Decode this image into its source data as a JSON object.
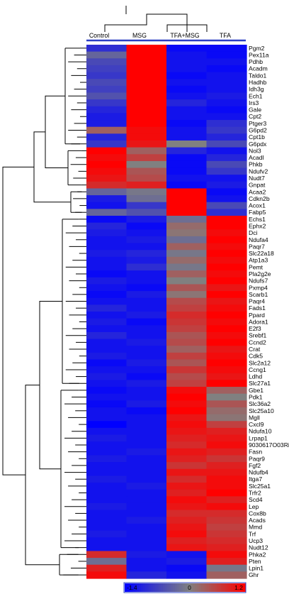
{
  "chart_data": {
    "type": "heatmap",
    "columns": [
      "Control",
      "MSG",
      "TFA+MSG",
      "TFA"
    ],
    "colorbar": {
      "min_label": "-1.4",
      "mid_label": "0",
      "max_label": "1.2",
      "min": -1.4,
      "max": 1.2,
      "colors": {
        "low": "#0000ff",
        "mid": "#808080",
        "high": "#ff0000"
      }
    },
    "rows": [
      {
        "gene": "Pgm2",
        "values": [
          -0.9,
          1.2,
          -1.3,
          -1.3
        ]
      },
      {
        "gene": "Pex11a",
        "values": [
          -0.3,
          1.2,
          -1.2,
          -1.3
        ]
      },
      {
        "gene": "Pdhb",
        "values": [
          -0.6,
          1.2,
          -1.2,
          -1.2
        ]
      },
      {
        "gene": "Acadm",
        "values": [
          -0.7,
          1.2,
          -1.2,
          -1.3
        ]
      },
      {
        "gene": "Taldo1",
        "values": [
          -0.8,
          1.2,
          -1.3,
          -1.2
        ]
      },
      {
        "gene": "Hadhb",
        "values": [
          -0.6,
          1.2,
          -1.2,
          -1.2
        ]
      },
      {
        "gene": "Idh3g",
        "values": [
          -0.7,
          1.2,
          -1.3,
          -1.2
        ]
      },
      {
        "gene": "Ech1",
        "values": [
          -0.5,
          1.2,
          -1.2,
          -1.1
        ]
      },
      {
        "gene": "Irs3",
        "values": [
          -0.8,
          1.2,
          -1.0,
          -1.2
        ]
      },
      {
        "gene": "Gale",
        "values": [
          -1.0,
          1.2,
          -1.2,
          -1.3
        ]
      },
      {
        "gene": "Cpt2",
        "values": [
          -1.1,
          1.2,
          -1.2,
          -1.2
        ]
      },
      {
        "gene": "Ptger3",
        "values": [
          -1.1,
          1.2,
          -1.3,
          -0.9
        ]
      },
      {
        "gene": "G6pd2",
        "values": [
          0.3,
          1.1,
          -1.2,
          -0.8
        ]
      },
      {
        "gene": "Cpt1b",
        "values": [
          -1.0,
          1.1,
          -1.2,
          -1.0
        ]
      },
      {
        "gene": "G6pdx",
        "values": [
          -0.8,
          1.0,
          0.0,
          -0.6
        ]
      },
      {
        "gene": "Nol3",
        "values": [
          1.2,
          0.3,
          -1.0,
          -1.2
        ]
      },
      {
        "gene": "Acadl",
        "values": [
          1.1,
          0.6,
          -1.3,
          -1.0
        ]
      },
      {
        "gene": "Phkb",
        "values": [
          1.2,
          0.0,
          -1.3,
          -0.6
        ]
      },
      {
        "gene": "Ndufv2",
        "values": [
          1.1,
          0.4,
          -1.3,
          -0.8
        ]
      },
      {
        "gene": "Nudt7",
        "values": [
          1.0,
          0.5,
          -1.2,
          -1.2
        ]
      },
      {
        "gene": "Gnpat",
        "values": [
          0.8,
          0.9,
          -1.3,
          -1.1
        ]
      },
      {
        "gene": "Acaa2",
        "values": [
          -0.3,
          -0.1,
          1.2,
          -1.3
        ]
      },
      {
        "gene": "Cdkn2b",
        "values": [
          -1.1,
          -0.2,
          1.2,
          -1.2
        ]
      },
      {
        "gene": "Acox1",
        "values": [
          -1.2,
          -0.8,
          1.2,
          -0.6
        ]
      },
      {
        "gene": "Fabp5",
        "values": [
          -0.3,
          -0.5,
          1.2,
          -0.9
        ]
      },
      {
        "gene": "Echs1",
        "values": [
          -1.3,
          -1.1,
          -0.2,
          1.2
        ]
      },
      {
        "gene": "Ephx2",
        "values": [
          -1.0,
          -1.3,
          0.2,
          1.2
        ]
      },
      {
        "gene": "Dci",
        "values": [
          -1.1,
          -1.2,
          0.1,
          1.1
        ]
      },
      {
        "gene": "Ndufa4",
        "values": [
          -1.2,
          -1.1,
          -0.2,
          1.2
        ]
      },
      {
        "gene": "Paqr7",
        "values": [
          -1.2,
          -1.2,
          0.3,
          1.1
        ]
      },
      {
        "gene": "Slc22a18",
        "values": [
          -1.1,
          -1.0,
          -0.1,
          1.2
        ]
      },
      {
        "gene": "Atp1a3",
        "values": [
          -1.2,
          -1.1,
          0.2,
          1.1
        ]
      },
      {
        "gene": "Pemt",
        "values": [
          -1.2,
          -0.9,
          -0.1,
          1.2
        ]
      },
      {
        "gene": "Pla2g2e",
        "values": [
          -1.3,
          -1.2,
          0.3,
          1.1
        ]
      },
      {
        "gene": "Ndufs7",
        "values": [
          -1.1,
          -1.2,
          0.0,
          1.2
        ]
      },
      {
        "gene": "Pxmp4",
        "values": [
          -1.2,
          -1.3,
          0.4,
          1.0
        ]
      },
      {
        "gene": "Scarb1",
        "values": [
          -1.3,
          -1.1,
          0.1,
          1.2
        ]
      },
      {
        "gene": "Paqr4",
        "values": [
          -1.2,
          -1.2,
          0.5,
          1.0
        ]
      },
      {
        "gene": "Fads1",
        "values": [
          -1.0,
          -1.2,
          0.6,
          1.1
        ]
      },
      {
        "gene": "Ppard",
        "values": [
          -1.2,
          -1.1,
          0.8,
          1.2
        ]
      },
      {
        "gene": "Adora1",
        "values": [
          -1.1,
          -1.3,
          0.7,
          1.1
        ]
      },
      {
        "gene": "E2f3",
        "values": [
          -1.2,
          -1.2,
          0.6,
          1.2
        ]
      },
      {
        "gene": "Srebf1",
        "values": [
          -1.0,
          -1.2,
          0.4,
          1.1
        ]
      },
      {
        "gene": "Ccnd2",
        "values": [
          -1.2,
          -1.1,
          0.5,
          1.2
        ]
      },
      {
        "gene": "Crat",
        "values": [
          -1.2,
          -1.2,
          0.3,
          1.0
        ]
      },
      {
        "gene": "Cdk5",
        "values": [
          -1.1,
          -1.2,
          0.6,
          1.1
        ]
      },
      {
        "gene": "Slc2a12",
        "values": [
          -1.3,
          -1.1,
          0.4,
          1.2
        ]
      },
      {
        "gene": "Ccng1",
        "values": [
          -1.2,
          -1.2,
          0.7,
          1.1
        ]
      },
      {
        "gene": "Ldhd",
        "values": [
          -1.1,
          -1.3,
          0.5,
          1.0
        ]
      },
      {
        "gene": "Slc27a1",
        "values": [
          -1.2,
          -1.1,
          0.6,
          1.2
        ]
      },
      {
        "gene": "Gbe1",
        "values": [
          -1.3,
          -1.2,
          1.1,
          0.3
        ]
      },
      {
        "gene": "Pdk1",
        "values": [
          -1.2,
          -1.2,
          1.2,
          0.0
        ]
      },
      {
        "gene": "Slc36a2",
        "values": [
          -1.3,
          -1.1,
          1.1,
          0.4
        ]
      },
      {
        "gene": "Slc25a10",
        "values": [
          -1.2,
          -1.3,
          1.2,
          0.2
        ]
      },
      {
        "gene": "Mgll",
        "values": [
          -1.2,
          -1.2,
          1.0,
          0.1
        ]
      },
      {
        "gene": "Cxcl9",
        "values": [
          -1.4,
          -1.2,
          1.1,
          0.6
        ]
      },
      {
        "gene": "Ndufa10",
        "values": [
          -1.2,
          -1.2,
          1.0,
          0.9
        ]
      },
      {
        "gene": "Lrpap1",
        "values": [
          -1.1,
          -1.2,
          0.9,
          1.0
        ]
      },
      {
        "gene": "9030617O03Rik",
        "values": [
          -1.2,
          -1.2,
          0.8,
          1.1
        ]
      },
      {
        "gene": "Fasn",
        "values": [
          -1.2,
          -1.1,
          1.0,
          0.9
        ]
      },
      {
        "gene": "Paqr9",
        "values": [
          -1.1,
          -1.2,
          0.9,
          0.7
        ]
      },
      {
        "gene": "Fgf2",
        "values": [
          -1.2,
          -1.2,
          0.7,
          0.9
        ]
      },
      {
        "gene": "Ndufb4",
        "values": [
          -1.2,
          -1.2,
          1.0,
          1.0
        ]
      },
      {
        "gene": "Itga7",
        "values": [
          -1.1,
          -1.2,
          0.8,
          1.1
        ]
      },
      {
        "gene": "Slc25a1",
        "values": [
          -1.2,
          -1.1,
          1.0,
          1.1
        ]
      },
      {
        "gene": "Trfr2",
        "values": [
          -1.2,
          -1.2,
          0.9,
          1.2
        ]
      },
      {
        "gene": "Scd4",
        "values": [
          -1.2,
          -1.2,
          1.1,
          0.9
        ]
      },
      {
        "gene": "Lep",
        "values": [
          -1.1,
          -1.2,
          1.0,
          1.1
        ]
      },
      {
        "gene": "Cox8b",
        "values": [
          -1.2,
          -1.2,
          0.8,
          0.8
        ]
      },
      {
        "gene": "Acads",
        "values": [
          -1.2,
          -1.1,
          0.9,
          0.7
        ]
      },
      {
        "gene": "Mmd",
        "values": [
          -1.2,
          -1.2,
          1.0,
          0.6
        ]
      },
      {
        "gene": "Trf",
        "values": [
          -1.1,
          -1.2,
          1.1,
          0.7
        ]
      },
      {
        "gene": "Ucp3",
        "values": [
          -1.2,
          -1.2,
          0.9,
          0.8
        ]
      },
      {
        "gene": "Nudt12",
        "values": [
          -1.2,
          -1.2,
          1.0,
          0.9
        ]
      },
      {
        "gene": "Phka2",
        "values": [
          0.8,
          -1.1,
          -1.2,
          1.1
        ]
      },
      {
        "gene": "Pten",
        "values": [
          -0.2,
          -1.2,
          -1.1,
          0.9
        ]
      },
      {
        "gene": "Lpin1",
        "values": [
          0.9,
          -1.2,
          -1.3,
          -0.1
        ]
      },
      {
        "gene": "Ghr",
        "values": [
          1.1,
          -1.0,
          -1.2,
          0.3
        ]
      }
    ]
  }
}
